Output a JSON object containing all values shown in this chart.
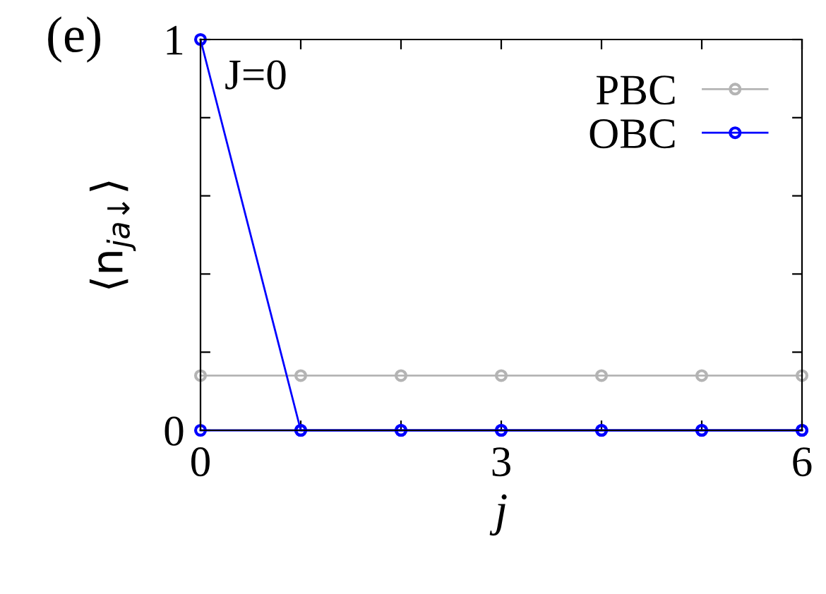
{
  "chart_data": {
    "type": "line",
    "title": "(e)",
    "xlabel": "j",
    "ylabel": "⟨n$_{ja↓}$⟩",
    "annotations": [
      "J=0"
    ],
    "x": [
      0,
      1,
      2,
      3,
      4,
      5,
      6
    ],
    "series": [
      {
        "name": "PBC",
        "color": "#b4b4b4",
        "values": [
          0.14,
          0.14,
          0.14,
          0.14,
          0.14,
          0.14,
          0.14
        ]
      },
      {
        "name": "OBC",
        "color": "#0000ff",
        "values": [
          1,
          0,
          0,
          0,
          0,
          0,
          0
        ]
      },
      {
        "color": "#0000ff",
        "values": [
          0,
          0,
          0,
          0,
          0,
          0,
          0
        ]
      }
    ],
    "xlim": [
      0,
      6
    ],
    "xticks": [
      0,
      {
        "value": 1,
        "label": null
      },
      {
        "value": 2,
        "label": null
      },
      3,
      {
        "value": 4,
        "label": null
      },
      {
        "value": 5,
        "label": null
      },
      6
    ],
    "ylim": [
      0,
      1
    ],
    "yticks": [
      0,
      {
        "value": 0.2,
        "label": null
      },
      {
        "value": 0.4,
        "label": null
      },
      {
        "value": 0.6,
        "label": null
      },
      {
        "value": 0.8,
        "label": null
      },
      1
    ],
    "grid": false,
    "legend": "top right",
    "marker": "circle",
    "line_style": "solid"
  }
}
